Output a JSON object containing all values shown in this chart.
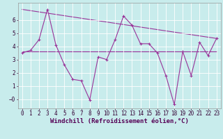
{
  "xlabel": "Windchill (Refroidissement éolien,°C)",
  "xlim": [
    -0.5,
    23.5
  ],
  "ylim": [
    -0.7,
    7.3
  ],
  "yticks": [
    0,
    1,
    2,
    3,
    4,
    5,
    6
  ],
  "xticks": [
    0,
    1,
    2,
    3,
    4,
    5,
    6,
    7,
    8,
    9,
    10,
    11,
    12,
    13,
    14,
    15,
    16,
    17,
    18,
    19,
    20,
    21,
    22,
    23
  ],
  "bg_color": "#c8ecec",
  "plot_bg": "#c8ecec",
  "line_color": "#993399",
  "grid_color": "#aadddd",
  "line1_x": [
    0,
    1,
    2,
    3,
    4,
    5,
    6,
    7,
    8,
    9,
    10,
    11,
    12,
    13,
    14,
    15,
    16,
    17,
    18,
    19,
    20,
    21,
    22,
    23
  ],
  "line1_y": [
    3.5,
    3.7,
    4.5,
    6.8,
    4.1,
    2.6,
    1.5,
    1.4,
    -0.05,
    3.2,
    3.0,
    4.5,
    6.3,
    5.6,
    4.2,
    4.2,
    3.5,
    1.8,
    -0.4,
    3.6,
    1.8,
    4.3,
    3.3,
    4.6
  ],
  "line2_x": [
    0,
    23
  ],
  "line2_y": [
    3.6,
    3.6
  ],
  "line3_x": [
    0,
    23
  ],
  "line3_y": [
    6.8,
    4.6
  ],
  "tick_fontsize": 5.5,
  "label_fontsize": 6.5
}
